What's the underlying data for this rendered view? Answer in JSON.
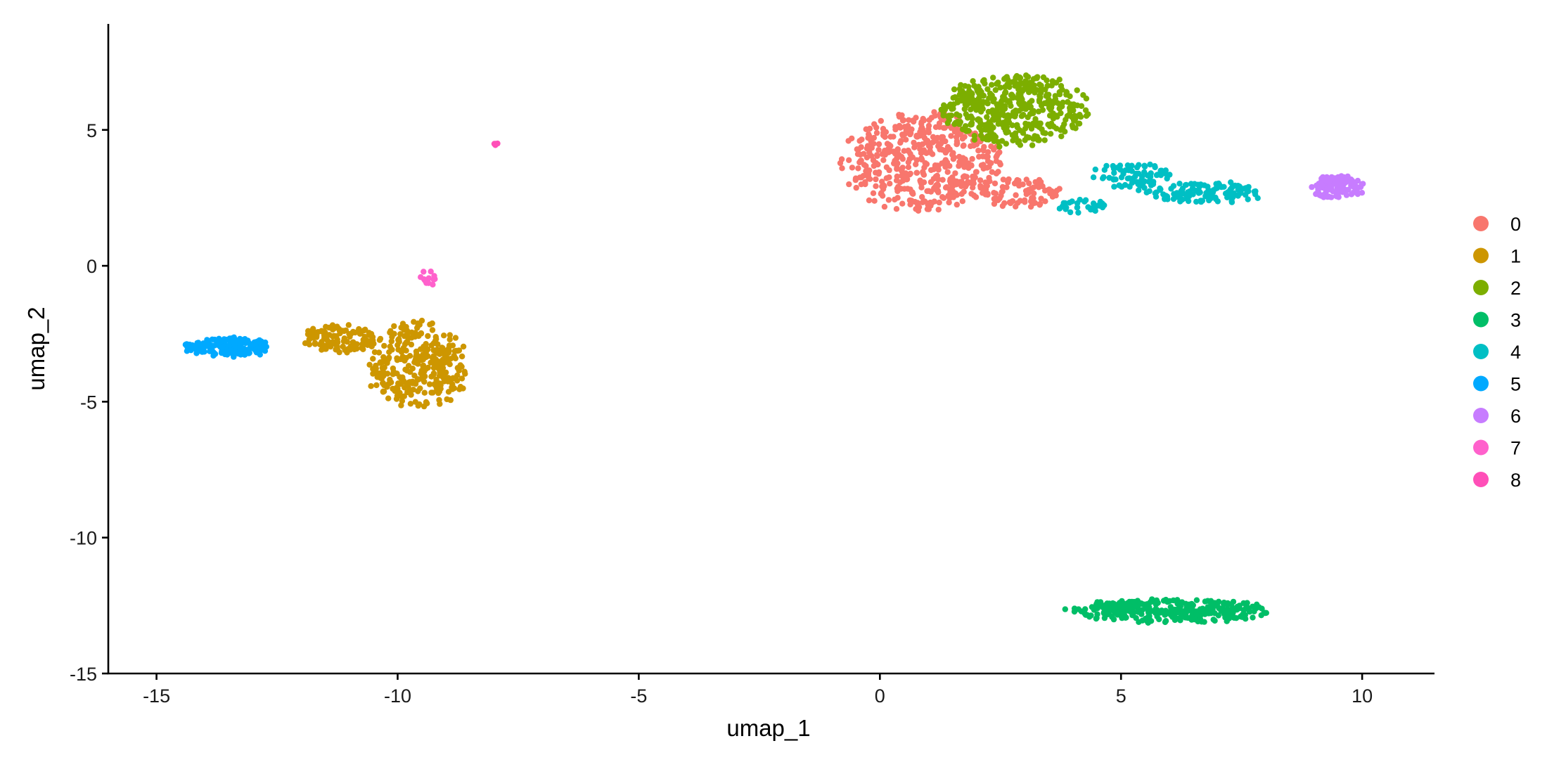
{
  "chart_data": {
    "type": "scatter",
    "xlabel": "umap_1",
    "ylabel": "umap_2",
    "xlim": [
      -16,
      11.5
    ],
    "ylim": [
      -15,
      8.9
    ],
    "xticks": [
      "-15",
      "-10",
      "-5",
      "0",
      "5",
      "10"
    ],
    "xtick_values": [
      -15,
      -10,
      -5,
      0,
      5,
      10
    ],
    "yticks": [
      "-15",
      "-10",
      "-5",
      "0",
      "5"
    ],
    "ytick_values": [
      -15,
      -10,
      -5,
      0,
      5
    ],
    "grid": false,
    "legend_position": "right",
    "series": [
      {
        "name": "0",
        "color": "#F8766D",
        "count": 560,
        "blobs": [
          {
            "cx": 0.9,
            "cy": 3.8,
            "rx": 1.6,
            "ry": 1.8,
            "w": 0.85
          },
          {
            "cx": 2.9,
            "cy": 2.7,
            "rx": 0.9,
            "ry": 0.6,
            "w": 0.15
          }
        ]
      },
      {
        "name": "1",
        "color": "#CD9600",
        "count": 430,
        "blobs": [
          {
            "cx": -9.6,
            "cy": -3.7,
            "rx": 1.0,
            "ry": 1.6,
            "w": 0.72
          },
          {
            "cx": -11.2,
            "cy": -2.7,
            "rx": 0.8,
            "ry": 0.5,
            "w": 0.28
          }
        ]
      },
      {
        "name": "2",
        "color": "#7CAE00",
        "count": 440,
        "blobs": [
          {
            "cx": 2.8,
            "cy": 5.7,
            "rx": 1.5,
            "ry": 1.3,
            "w": 1.0
          }
        ]
      },
      {
        "name": "3",
        "color": "#00BE67",
        "count": 320,
        "blobs": [
          {
            "cx": 6.0,
            "cy": -12.7,
            "rx": 2.0,
            "ry": 0.45,
            "w": 1.0
          }
        ]
      },
      {
        "name": "4",
        "color": "#00BFC4",
        "count": 220,
        "blobs": [
          {
            "cx": 5.2,
            "cy": 3.3,
            "rx": 0.8,
            "ry": 0.5,
            "w": 0.35
          },
          {
            "cx": 6.8,
            "cy": 2.7,
            "rx": 1.2,
            "ry": 0.4,
            "w": 0.5
          },
          {
            "cx": 4.2,
            "cy": 2.2,
            "rx": 0.5,
            "ry": 0.3,
            "w": 0.15
          }
        ]
      },
      {
        "name": "5",
        "color": "#00A9FF",
        "count": 160,
        "blobs": [
          {
            "cx": -13.5,
            "cy": -3.0,
            "rx": 0.9,
            "ry": 0.35,
            "w": 1.0
          }
        ]
      },
      {
        "name": "6",
        "color": "#C77CFF",
        "count": 120,
        "blobs": [
          {
            "cx": 9.5,
            "cy": 2.9,
            "rx": 0.55,
            "ry": 0.45,
            "w": 1.0
          }
        ]
      },
      {
        "name": "7",
        "color": "#FF61CC",
        "count": 14,
        "blobs": [
          {
            "cx": -9.35,
            "cy": -0.45,
            "rx": 0.2,
            "ry": 0.3,
            "w": 1.0
          }
        ]
      },
      {
        "name": "8",
        "color": "#FF4FB8",
        "count": 6,
        "blobs": [
          {
            "cx": -7.95,
            "cy": 4.45,
            "rx": 0.06,
            "ry": 0.05,
            "w": 1.0
          }
        ]
      }
    ]
  }
}
